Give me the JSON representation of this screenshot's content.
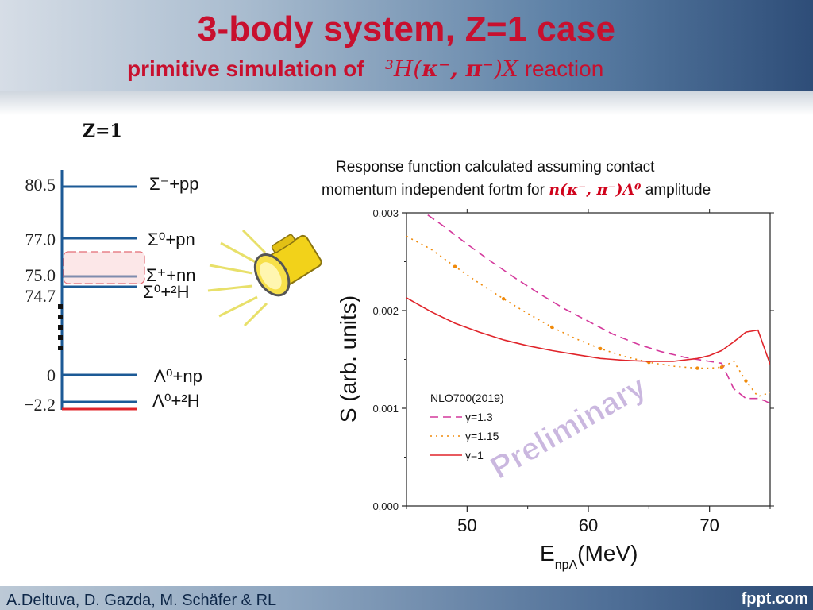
{
  "slide": {
    "title": "3-body system, Z=1 case",
    "subtitle_bold": "primitive simulation of",
    "subtitle_math_base": "³H(",
    "subtitle_math_particles": "κ⁻, π⁻",
    "subtitle_math_close": ")X",
    "subtitle_tail": "reaction",
    "z_label": "Z=1",
    "footer_authors": "A.Deltuva, D. Gazda, M. Schäfer & RL",
    "footer_brand": "fppt.com"
  },
  "level_scheme": {
    "levels": [
      {
        "energy": "80.5",
        "label": "Σ⁻+pp"
      },
      {
        "energy": "77.0",
        "label": "Σ⁰+pn"
      },
      {
        "energy": "75.0",
        "label": "Σ⁺+nn"
      },
      {
        "energy": "74.7",
        "label": "Σ⁰+²H"
      },
      {
        "energy": "0",
        "label": "Λ⁰+np"
      },
      {
        "energy": "−2.2",
        "label": "Λ⁰+²H"
      }
    ]
  },
  "caption": {
    "line1": "Response function calculated assuming contact",
    "line2_prefix": "momentum independent fortm for ",
    "line2_math": "n(κ⁻, π⁻)Λ⁰",
    "line2_suffix": " amplitude"
  },
  "chart_data": {
    "type": "line",
    "xlabel": "E_npΛ(MeV)",
    "ylabel": "S (arb. units)",
    "xlim": [
      45,
      75
    ],
    "ylim": [
      0.0,
      0.003
    ],
    "x_ticks": [
      "50",
      "60",
      "70"
    ],
    "y_ticks": [
      "0,000",
      "0,001",
      "0,002",
      "0,003"
    ],
    "legend_title": "NLO700(2019)",
    "watermark": "Preliminary",
    "series": [
      {
        "name": "γ=1.3",
        "color": "#d4399c",
        "style": "dash",
        "x": [
          45,
          46.5,
          48,
          50,
          52,
          54,
          56,
          58,
          60,
          62,
          64,
          66,
          68,
          70,
          71,
          72,
          73,
          74,
          74.5,
          75
        ],
        "y": [
          0.00312,
          0.003,
          0.00287,
          0.00268,
          0.0025,
          0.00233,
          0.00217,
          0.00202,
          0.00189,
          0.00176,
          0.00166,
          0.00158,
          0.00152,
          0.00148,
          0.00146,
          0.0012,
          0.0011,
          0.0011,
          0.00108,
          0.00105
        ]
      },
      {
        "name": "γ=1.15",
        "color": "#f08a0a",
        "style": "dot",
        "x": [
          45,
          47,
          49,
          51,
          53,
          55,
          57,
          59,
          61,
          63,
          65,
          67,
          69,
          70,
          71,
          72,
          73,
          74,
          75
        ],
        "y": [
          0.00276,
          0.00263,
          0.00245,
          0.00228,
          0.00212,
          0.00197,
          0.00183,
          0.00171,
          0.00161,
          0.00153,
          0.00147,
          0.00143,
          0.00141,
          0.00141,
          0.00142,
          0.00148,
          0.00128,
          0.00112,
          0.00116
        ]
      },
      {
        "name": "γ=1",
        "color": "#e0242a",
        "style": "solid",
        "x": [
          45,
          47,
          49,
          51,
          53,
          55,
          57,
          59,
          61,
          63,
          65,
          67,
          69,
          70,
          71,
          72,
          73,
          74,
          75
        ],
        "y": [
          0.00213,
          0.00199,
          0.00187,
          0.00178,
          0.0017,
          0.00164,
          0.00159,
          0.00155,
          0.00151,
          0.00149,
          0.00148,
          0.00148,
          0.00151,
          0.00154,
          0.00159,
          0.00168,
          0.00178,
          0.0018,
          0.00145
        ]
      }
    ]
  },
  "colors": {
    "title": "#c8102e",
    "level_line": "#1c5a96",
    "ground_line": "#e0242a",
    "watermark": "#8a5fb8"
  },
  "icons": {
    "flashlight": "flashlight-icon"
  }
}
